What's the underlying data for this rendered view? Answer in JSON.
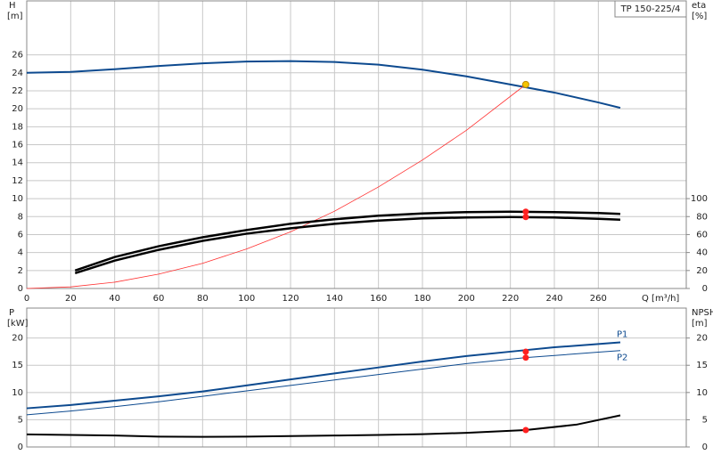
{
  "chart_data": [
    {
      "type": "line",
      "title": "TP 150-225/4",
      "x_label": "Q [m³/h]",
      "y_label": "H",
      "y_unit": "[m]",
      "y2_label": "eta",
      "y2_unit": "[%]",
      "xlim": [
        0,
        300
      ],
      "xticks": [
        0,
        20,
        40,
        60,
        80,
        100,
        120,
        140,
        160,
        180,
        200,
        220,
        240,
        260
      ],
      "xtick_labels": true,
      "ylim": [
        0,
        32
      ],
      "yticks": [
        0,
        2,
        4,
        6,
        8,
        10,
        12,
        14,
        16,
        18,
        20,
        22,
        24,
        26
      ],
      "y2lim": [
        0,
        320
      ],
      "y2ticks": [
        0,
        20,
        40,
        60,
        80,
        100
      ],
      "grid": true,
      "series": [
        {
          "color": "#0d4a8f",
          "width": 2,
          "x": [
            0,
            20,
            40,
            60,
            80,
            100,
            120,
            140,
            160,
            180,
            200,
            220,
            240,
            260,
            270
          ],
          "values": [
            24.0,
            24.1,
            24.4,
            24.75,
            25.05,
            25.25,
            25.3,
            25.2,
            24.9,
            24.35,
            23.6,
            22.7,
            21.8,
            20.7,
            20.1
          ]
        },
        {
          "color": "#ff3030",
          "width": 0.8,
          "x": [
            0,
            20,
            40,
            60,
            80,
            100,
            120,
            140,
            160,
            180,
            200,
            227
          ],
          "values": [
            0,
            0.18,
            0.7,
            1.6,
            2.8,
            4.4,
            6.3,
            8.6,
            11.3,
            14.3,
            17.6,
            22.7
          ]
        },
        {
          "color": "#000000",
          "width": 2.5,
          "axis": "y2",
          "x": [
            22,
            40,
            60,
            80,
            100,
            120,
            140,
            160,
            180,
            200,
            220,
            240,
            260,
            270
          ],
          "values": [
            20,
            35,
            47,
            57,
            65,
            72,
            77,
            81,
            83.5,
            85,
            85.5,
            85,
            84,
            83
          ]
        },
        {
          "color": "#000000",
          "width": 2.5,
          "axis": "y2",
          "x": [
            22,
            40,
            60,
            80,
            100,
            120,
            140,
            160,
            180,
            200,
            220,
            240,
            260,
            270
          ],
          "values": [
            17,
            31,
            43,
            53,
            61,
            67,
            72,
            75.5,
            78,
            79,
            79.5,
            79,
            77.5,
            76.5
          ]
        }
      ],
      "markers": [
        {
          "x": 227,
          "y": 22.7,
          "color": "#f5c400"
        },
        {
          "x": 227,
          "y": 85.5,
          "color": "#ff2020",
          "axis": "y2"
        },
        {
          "x": 227,
          "y": 79.5,
          "color": "#ff2020",
          "axis": "y2"
        }
      ]
    },
    {
      "type": "line",
      "y_label": "P",
      "y_unit": "[kW]",
      "y2_label": "NPSH",
      "y2_unit": "[m]",
      "xlim": [
        0,
        300
      ],
      "xticks": [
        0,
        20,
        40,
        60,
        80,
        100,
        120,
        140,
        160,
        180,
        200,
        220,
        240,
        260
      ],
      "xtick_labels": false,
      "ylim": [
        0,
        25.5
      ],
      "yticks": [
        0,
        5,
        10,
        15,
        20
      ],
      "y2lim": [
        0,
        25.5
      ],
      "y2ticks": [
        0,
        5,
        10,
        15,
        20
      ],
      "grid": true,
      "series": [
        {
          "name": "P1",
          "color": "#0d4a8f",
          "width": 2,
          "x": [
            0,
            20,
            40,
            60,
            80,
            100,
            120,
            140,
            160,
            180,
            200,
            220,
            240,
            260,
            270
          ],
          "values": [
            7.1,
            7.7,
            8.5,
            9.3,
            10.2,
            11.3,
            12.4,
            13.5,
            14.6,
            15.7,
            16.7,
            17.5,
            18.3,
            18.9,
            19.2
          ]
        },
        {
          "name": "P2",
          "color": "#0d4a8f",
          "width": 1,
          "x": [
            0,
            20,
            40,
            60,
            80,
            100,
            120,
            140,
            160,
            180,
            200,
            227,
            260,
            270
          ],
          "values": [
            5.9,
            6.6,
            7.4,
            8.3,
            9.3,
            10.3,
            11.3,
            12.3,
            13.3,
            14.3,
            15.3,
            16.4,
            17.4,
            17.7
          ]
        },
        {
          "color": "#000000",
          "width": 2,
          "axis": "y2",
          "x": [
            0,
            20,
            40,
            60,
            80,
            100,
            120,
            140,
            160,
            180,
            200,
            227,
            250,
            270
          ],
          "values": [
            2.3,
            2.2,
            2.1,
            1.9,
            1.85,
            1.9,
            2.0,
            2.1,
            2.2,
            2.35,
            2.6,
            3.1,
            4.1,
            5.8
          ]
        }
      ],
      "markers": [
        {
          "x": 227,
          "y": 17.5,
          "color": "#ff2020"
        },
        {
          "x": 227,
          "y": 16.4,
          "color": "#ff2020"
        },
        {
          "x": 227,
          "y": 3.1,
          "color": "#ff2020",
          "axis": "y2"
        }
      ]
    }
  ]
}
